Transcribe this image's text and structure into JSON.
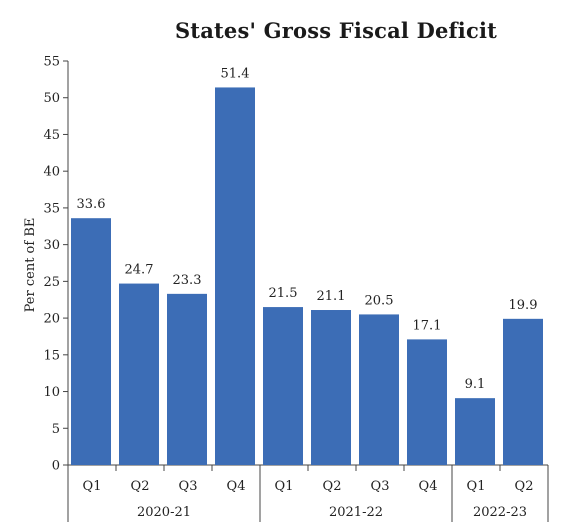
{
  "chart_data": {
    "type": "bar",
    "title": "States' Gross Fiscal Deficit",
    "ylabel": "Per cent of BE",
    "xlabel": "",
    "ylim": [
      0,
      55
    ],
    "yticks": [
      0,
      5,
      10,
      15,
      20,
      25,
      30,
      35,
      40,
      45,
      50,
      55
    ],
    "grid": false,
    "legend": "none",
    "bar_color": "#3c6db6",
    "categories": [
      "Q1",
      "Q2",
      "Q3",
      "Q4",
      "Q1",
      "Q2",
      "Q3",
      "Q4",
      "Q1",
      "Q2"
    ],
    "groups": [
      {
        "label": "2020-21",
        "count": 4
      },
      {
        "label": "2021-22",
        "count": 4
      },
      {
        "label": "2022-23",
        "count": 2
      }
    ],
    "values": [
      33.6,
      24.7,
      23.3,
      51.4,
      21.5,
      21.1,
      20.5,
      17.1,
      9.1,
      19.9
    ],
    "value_labels": [
      "33.6",
      "24.7",
      "23.3",
      "51.4",
      "21.5",
      "21.1",
      "20.5",
      "17.1",
      "9.1",
      "19.9"
    ]
  }
}
